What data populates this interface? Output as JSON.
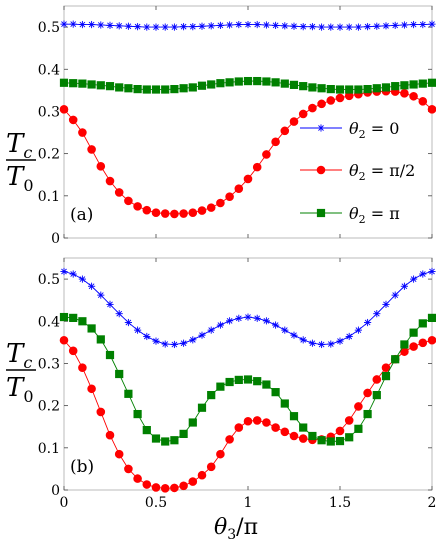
{
  "chart_data": [
    {
      "type": "line",
      "panel_label": "(a)",
      "ylabel_top": "T",
      "ylabel_top_sub": "c",
      "ylabel_bottom": "T",
      "ylabel_bottom_sub": "0",
      "xlim": [
        0,
        2
      ],
      "ylim": [
        0,
        0.55
      ],
      "yticks": [
        0,
        0.1,
        0.2,
        0.3,
        0.4,
        0.5
      ],
      "yticklabels": [
        "0",
        "0.1",
        "0.2",
        "0.3",
        "0.4",
        "0.5"
      ],
      "xticks": [
        0,
        0.5,
        1,
        1.5,
        2
      ],
      "xticklabels": [],
      "legend_position": "right",
      "x": [
        0,
        0.05,
        0.1,
        0.15,
        0.2,
        0.25,
        0.3,
        0.35,
        0.4,
        0.45,
        0.5,
        0.55,
        0.6,
        0.65,
        0.7,
        0.75,
        0.8,
        0.85,
        0.9,
        0.95,
        1,
        1.05,
        1.1,
        1.15,
        1.2,
        1.25,
        1.3,
        1.35,
        1.4,
        1.45,
        1.5,
        1.55,
        1.6,
        1.65,
        1.7,
        1.75,
        1.8,
        1.85,
        1.9,
        1.95,
        2
      ],
      "series": [
        {
          "name": "θ2 = 0",
          "name_main": "θ",
          "name_sub": "2",
          "name_rest": " = 0",
          "color": "#0000ff",
          "marker": "asterisk",
          "values": [
            0.507,
            0.507,
            0.506,
            0.506,
            0.505,
            0.504,
            0.503,
            0.502,
            0.501,
            0.5,
            0.5,
            0.5,
            0.5,
            0.501,
            0.501,
            0.502,
            0.503,
            0.504,
            0.505,
            0.506,
            0.506,
            0.506,
            0.505,
            0.504,
            0.503,
            0.502,
            0.501,
            0.501,
            0.5,
            0.5,
            0.5,
            0.5,
            0.5,
            0.501,
            0.502,
            0.503,
            0.504,
            0.505,
            0.506,
            0.506,
            0.507
          ]
        },
        {
          "name": "θ2 = π/2",
          "name_main": "θ",
          "name_sub": "2",
          "name_rest": " = π/2",
          "color": "#ff0000",
          "marker": "circle",
          "values": [
            0.305,
            0.28,
            0.25,
            0.21,
            0.17,
            0.135,
            0.108,
            0.088,
            0.075,
            0.066,
            0.06,
            0.058,
            0.057,
            0.058,
            0.06,
            0.065,
            0.072,
            0.083,
            0.098,
            0.117,
            0.14,
            0.168,
            0.198,
            0.228,
            0.254,
            0.276,
            0.294,
            0.308,
            0.318,
            0.326,
            0.332,
            0.337,
            0.341,
            0.345,
            0.347,
            0.348,
            0.347,
            0.343,
            0.336,
            0.324,
            0.305
          ]
        },
        {
          "name": "θ2 = π",
          "name_main": "θ",
          "name_sub": "2",
          "name_rest": " = π",
          "color": "#008000",
          "marker": "square",
          "values": [
            0.368,
            0.367,
            0.366,
            0.364,
            0.362,
            0.36,
            0.357,
            0.355,
            0.353,
            0.352,
            0.352,
            0.352,
            0.353,
            0.355,
            0.357,
            0.361,
            0.364,
            0.367,
            0.369,
            0.371,
            0.372,
            0.372,
            0.371,
            0.369,
            0.366,
            0.363,
            0.36,
            0.357,
            0.355,
            0.353,
            0.352,
            0.352,
            0.352,
            0.353,
            0.355,
            0.357,
            0.36,
            0.362,
            0.364,
            0.366,
            0.368
          ]
        }
      ]
    },
    {
      "type": "line",
      "panel_label": "(b)",
      "ylabel_top": "T",
      "ylabel_top_sub": "c",
      "ylabel_bottom": "T",
      "ylabel_bottom_sub": "0",
      "xlabel_main": "θ",
      "xlabel_sub": "3",
      "xlabel_rest": "/π",
      "xlim": [
        0,
        2
      ],
      "ylim": [
        0,
        0.55
      ],
      "yticks": [
        0,
        0.1,
        0.2,
        0.3,
        0.4,
        0.5
      ],
      "yticklabels": [
        "0",
        "0.1",
        "0.2",
        "0.3",
        "0.4",
        "0.5"
      ],
      "xticks": [
        0,
        0.5,
        1,
        1.5,
        2
      ],
      "xticklabels": [
        "0",
        "0.5",
        "1",
        "1.5",
        "2"
      ],
      "x": [
        0,
        0.05,
        0.1,
        0.15,
        0.2,
        0.25,
        0.3,
        0.35,
        0.4,
        0.45,
        0.5,
        0.55,
        0.6,
        0.65,
        0.7,
        0.75,
        0.8,
        0.85,
        0.9,
        0.95,
        1,
        1.05,
        1.1,
        1.15,
        1.2,
        1.25,
        1.3,
        1.35,
        1.4,
        1.45,
        1.5,
        1.55,
        1.6,
        1.65,
        1.7,
        1.75,
        1.8,
        1.85,
        1.9,
        1.95,
        2
      ],
      "series": [
        {
          "name": "θ2 = 0",
          "color": "#0000ff",
          "marker": "asterisk",
          "values": [
            0.518,
            0.512,
            0.5,
            0.483,
            0.462,
            0.44,
            0.418,
            0.397,
            0.379,
            0.364,
            0.353,
            0.346,
            0.345,
            0.348,
            0.356,
            0.367,
            0.379,
            0.391,
            0.401,
            0.407,
            0.41,
            0.407,
            0.401,
            0.391,
            0.379,
            0.367,
            0.356,
            0.348,
            0.345,
            0.346,
            0.353,
            0.364,
            0.379,
            0.397,
            0.418,
            0.44,
            0.462,
            0.483,
            0.5,
            0.512,
            0.518
          ]
        },
        {
          "name": "θ2 = π/2",
          "color": "#ff0000",
          "marker": "circle",
          "values": [
            0.355,
            0.33,
            0.29,
            0.24,
            0.185,
            0.13,
            0.085,
            0.05,
            0.027,
            0.013,
            0.006,
            0.004,
            0.005,
            0.01,
            0.02,
            0.035,
            0.055,
            0.085,
            0.12,
            0.148,
            0.163,
            0.165,
            0.16,
            0.148,
            0.138,
            0.128,
            0.122,
            0.119,
            0.12,
            0.126,
            0.14,
            0.165,
            0.198,
            0.23,
            0.262,
            0.29,
            0.31,
            0.328,
            0.34,
            0.349,
            0.355
          ]
        },
        {
          "name": "θ2 = π",
          "color": "#008000",
          "marker": "square",
          "values": [
            0.41,
            0.408,
            0.4,
            0.383,
            0.357,
            0.32,
            0.275,
            0.228,
            0.18,
            0.142,
            0.122,
            0.115,
            0.118,
            0.133,
            0.16,
            0.195,
            0.225,
            0.245,
            0.256,
            0.261,
            0.262,
            0.258,
            0.25,
            0.232,
            0.205,
            0.175,
            0.148,
            0.128,
            0.118,
            0.115,
            0.116,
            0.125,
            0.145,
            0.18,
            0.225,
            0.27,
            0.31,
            0.345,
            0.373,
            0.395,
            0.408
          ]
        }
      ]
    }
  ]
}
